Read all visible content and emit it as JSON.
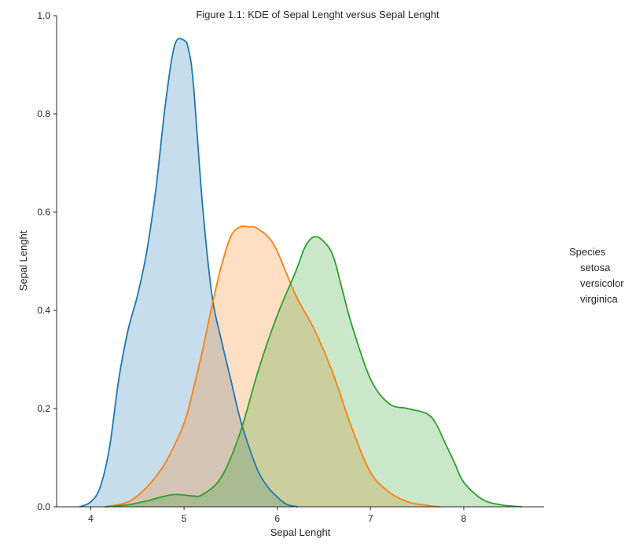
{
  "chart_data": {
    "type": "area",
    "title": "Figure 1.1: KDE of Sepal Lenght versus Sepal Lenght",
    "xlabel": "Sepal Lenght",
    "ylabel": "Sepal Lenght",
    "xlim": [
      3.7,
      8.85
    ],
    "ylim": [
      0,
      1.0
    ],
    "xticks": [
      "4",
      "5",
      "6",
      "7",
      "8"
    ],
    "xtick_values": [
      4,
      5,
      6,
      7,
      8
    ],
    "yticks": [
      "0.0",
      "0.2",
      "0.4",
      "0.6",
      "0.8",
      "1.0"
    ],
    "ytick_values": [
      0,
      0.2,
      0.4,
      0.6,
      0.8,
      1.0
    ],
    "grid": false,
    "legend_position": "right",
    "legend_title": "Species",
    "series": [
      {
        "name": "setosa",
        "color": "#1f77b4",
        "x": [
          3.88,
          4.0,
          4.1,
          4.2,
          4.3,
          4.4,
          4.5,
          4.6,
          4.7,
          4.8,
          4.9,
          5.0,
          5.05,
          5.1,
          5.2,
          5.3,
          5.4,
          5.5,
          5.6,
          5.7,
          5.8,
          5.9,
          6.0,
          6.1,
          6.22
        ],
        "y": [
          0.0,
          0.01,
          0.04,
          0.12,
          0.26,
          0.36,
          0.43,
          0.52,
          0.65,
          0.82,
          0.94,
          0.95,
          0.93,
          0.86,
          0.61,
          0.43,
          0.34,
          0.26,
          0.18,
          0.12,
          0.07,
          0.04,
          0.02,
          0.005,
          0.0
        ]
      },
      {
        "name": "versicolor",
        "color": "#ff7f0e",
        "x": [
          4.15,
          4.4,
          4.6,
          4.8,
          5.0,
          5.1,
          5.2,
          5.3,
          5.4,
          5.5,
          5.6,
          5.7,
          5.75,
          5.8,
          5.9,
          6.0,
          6.2,
          6.4,
          6.6,
          6.8,
          7.0,
          7.2,
          7.4,
          7.6,
          7.75
        ],
        "y": [
          0.0,
          0.01,
          0.04,
          0.09,
          0.17,
          0.24,
          0.32,
          0.41,
          0.49,
          0.55,
          0.57,
          0.57,
          0.57,
          0.565,
          0.55,
          0.52,
          0.43,
          0.36,
          0.27,
          0.16,
          0.07,
          0.03,
          0.01,
          0.003,
          0.0
        ]
      },
      {
        "name": "virginica",
        "color": "#2ca02c",
        "x": [
          4.15,
          4.4,
          4.6,
          4.8,
          4.9,
          5.0,
          5.1,
          5.2,
          5.4,
          5.6,
          5.8,
          6.0,
          6.2,
          6.3,
          6.4,
          6.5,
          6.6,
          6.7,
          6.8,
          7.0,
          7.2,
          7.4,
          7.6,
          7.7,
          7.8,
          7.9,
          8.0,
          8.2,
          8.4,
          8.62
        ],
        "y": [
          0.0,
          0.004,
          0.012,
          0.022,
          0.025,
          0.024,
          0.022,
          0.025,
          0.06,
          0.15,
          0.28,
          0.39,
          0.48,
          0.53,
          0.55,
          0.54,
          0.51,
          0.44,
          0.37,
          0.26,
          0.21,
          0.2,
          0.19,
          0.17,
          0.13,
          0.09,
          0.05,
          0.015,
          0.004,
          0.0
        ]
      }
    ]
  }
}
